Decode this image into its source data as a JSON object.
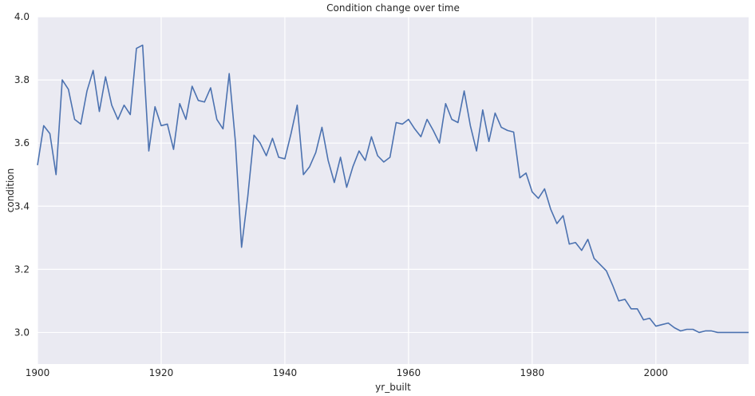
{
  "chart_data": {
    "type": "line",
    "title": "Condition change over time",
    "xlabel": "yr_built",
    "ylabel": "condition",
    "xlim": [
      1900,
      2015
    ],
    "ylim": [
      2.9,
      4.0
    ],
    "grid": true,
    "x_ticks": [
      1900,
      1920,
      1940,
      1960,
      1980,
      2000
    ],
    "x_tick_labels": [
      "1900",
      "1920",
      "1940",
      "1960",
      "1980",
      "2000"
    ],
    "y_ticks": [
      3.0,
      3.2,
      3.4,
      3.6,
      3.8,
      4.0
    ],
    "y_tick_labels": [
      "3.0",
      "3.2",
      "3.4",
      "3.6",
      "3.8",
      "4.0"
    ],
    "colors": {
      "plot_bg": "#eaeaf2",
      "line": "#4c72b0",
      "grid": "#ffffff"
    },
    "series": [
      {
        "x": [
          1900,
          1901,
          1902,
          1903,
          1904,
          1905,
          1906,
          1907,
          1908,
          1909,
          1910,
          1911,
          1912,
          1913,
          1914,
          1915,
          1916,
          1917,
          1918,
          1919,
          1920,
          1921,
          1922,
          1923,
          1924,
          1925,
          1926,
          1927,
          1928,
          1929,
          1930,
          1931,
          1932,
          1933,
          1934,
          1935,
          1936,
          1937,
          1938,
          1939,
          1940,
          1941,
          1942,
          1943,
          1944,
          1945,
          1946,
          1947,
          1948,
          1949,
          1950,
          1951,
          1952,
          1953,
          1954,
          1955,
          1956,
          1957,
          1958,
          1959,
          1960,
          1961,
          1962,
          1963,
          1964,
          1965,
          1966,
          1967,
          1968,
          1969,
          1970,
          1971,
          1972,
          1973,
          1974,
          1975,
          1976,
          1977,
          1978,
          1979,
          1980,
          1981,
          1982,
          1983,
          1984,
          1985,
          1986,
          1987,
          1988,
          1989,
          1990,
          1991,
          1992,
          1993,
          1994,
          1995,
          1996,
          1997,
          1998,
          1999,
          2000,
          2001,
          2002,
          2003,
          2004,
          2005,
          2006,
          2007,
          2008,
          2009,
          2010,
          2011,
          2012,
          2013,
          2014,
          2015
        ],
        "values": [
          3.53,
          3.655,
          3.63,
          3.5,
          3.8,
          3.77,
          3.675,
          3.66,
          3.765,
          3.83,
          3.7,
          3.81,
          3.72,
          3.675,
          3.72,
          3.69,
          3.9,
          3.91,
          3.575,
          3.715,
          3.655,
          3.66,
          3.58,
          3.725,
          3.675,
          3.78,
          3.735,
          3.73,
          3.775,
          3.675,
          3.645,
          3.82,
          3.605,
          3.27,
          3.43,
          3.625,
          3.6,
          3.56,
          3.615,
          3.555,
          3.55,
          3.63,
          3.72,
          3.5,
          3.525,
          3.57,
          3.65,
          3.545,
          3.475,
          3.555,
          3.46,
          3.525,
          3.575,
          3.545,
          3.62,
          3.56,
          3.54,
          3.555,
          3.665,
          3.66,
          3.675,
          3.645,
          3.62,
          3.675,
          3.64,
          3.6,
          3.725,
          3.675,
          3.665,
          3.765,
          3.655,
          3.575,
          3.705,
          3.605,
          3.695,
          3.65,
          3.64,
          3.635,
          3.49,
          3.505,
          3.445,
          3.425,
          3.455,
          3.39,
          3.345,
          3.37,
          3.28,
          3.285,
          3.26,
          3.295,
          3.235,
          3.215,
          3.195,
          3.15,
          3.1,
          3.105,
          3.075,
          3.075,
          3.04,
          3.045,
          3.02,
          3.025,
          3.03,
          3.015,
          3.005,
          3.01,
          3.01,
          3.0,
          3.005,
          3.005,
          3.0,
          3.0,
          3.0,
          3.0,
          3.0,
          3.0
        ]
      }
    ]
  }
}
